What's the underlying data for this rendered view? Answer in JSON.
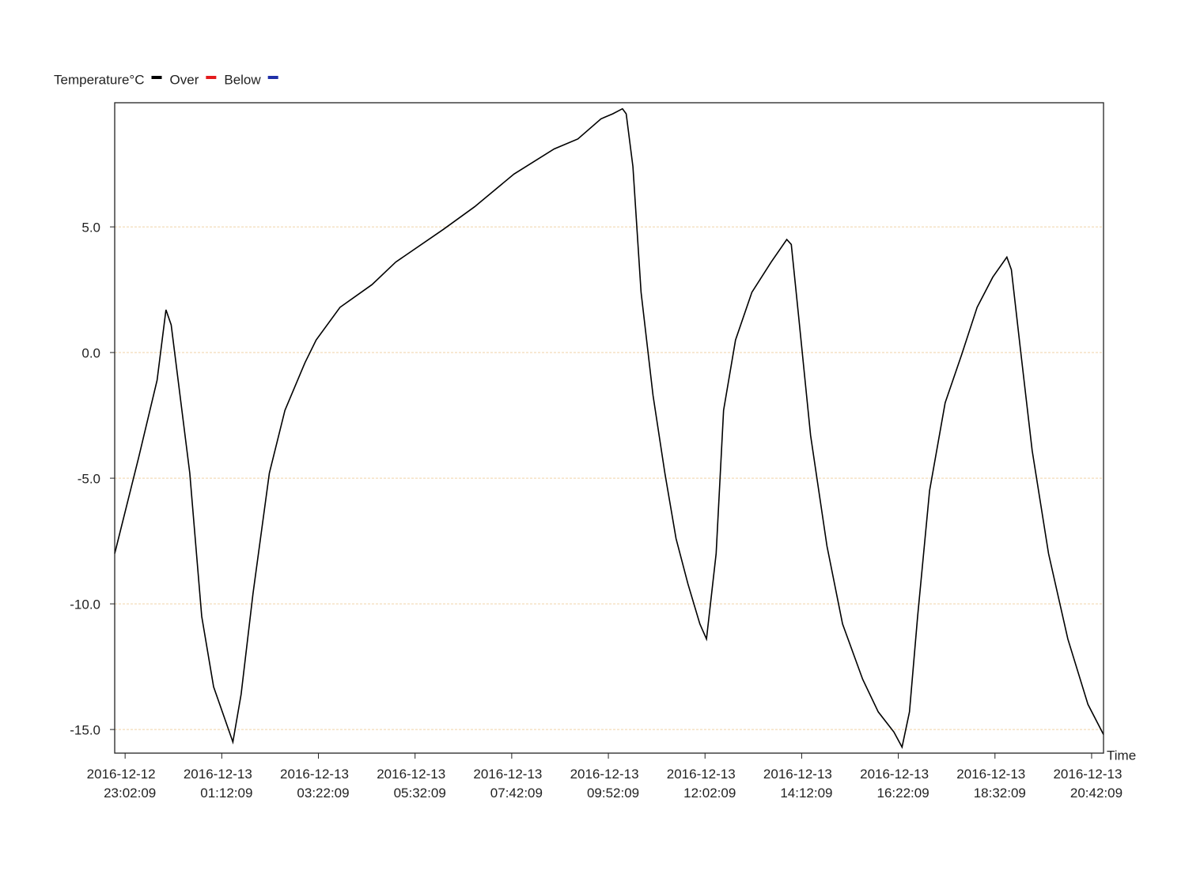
{
  "chart_data": {
    "type": "line",
    "series": [
      {
        "name": "Temperature°C",
        "color": "#000000",
        "values": [
          -8.0,
          -4.2,
          -1.1,
          1.7,
          1.1,
          -4.8,
          -10.5,
          -13.3,
          -15.5,
          -13.6,
          -9.6,
          -4.8,
          -2.3,
          -0.4,
          0.5,
          1.8,
          2.7,
          3.6,
          4.9,
          5.8,
          7.1,
          8.1,
          8.5,
          9.3,
          9.5,
          9.7,
          9.5,
          7.4,
          2.4,
          -1.7,
          -4.8,
          -7.4,
          -9.2,
          -10.8,
          -11.4,
          -8.0,
          -2.3,
          0.5,
          2.4,
          3.6,
          4.5,
          4.3,
          1.4,
          -3.3,
          -7.7,
          -10.8,
          -13.0,
          -14.3,
          -15.1,
          -15.7,
          -14.3,
          -10.5,
          -5.5,
          -2.0,
          -0.1,
          1.8,
          3.0,
          3.8,
          3.3,
          0.2,
          -3.9,
          -8.0,
          -11.4,
          -14.0,
          -15.2
        ]
      }
    ],
    "legend_extra": [
      {
        "name": "Over",
        "color": "#e41a1c"
      },
      {
        "name": "Below",
        "color": "#1f2fa8"
      }
    ],
    "x": [
      "2016-12-12 22:48:09",
      "2016-12-12 23:20:09",
      "2016-12-12 23:45:09",
      "2016-12-12 23:57:09",
      "2016-12-13 00:04:09",
      "2016-12-13 00:29:09",
      "2016-12-13 00:45:09",
      "2016-12-13 01:01:09",
      "2016-12-13 01:27:09",
      "2016-12-13 01:38:09",
      "2016-12-13 01:54:09",
      "2016-12-13 02:16:09",
      "2016-12-13 02:37:09",
      "2016-12-13 03:04:09",
      "2016-12-13 03:19:09",
      "2016-12-13 03:51:09",
      "2016-12-13 04:34:09",
      "2016-12-13 05:06:09",
      "2016-12-13 06:10:09",
      "2016-12-13 06:52:09",
      "2016-12-13 07:45:09",
      "2016-12-13 08:39:09",
      "2016-12-13 09:11:09",
      "2016-12-13 09:42:09",
      "2016-12-13 09:58:09",
      "2016-12-13 10:11:09",
      "2016-12-13 10:16:09",
      "2016-12-13 10:25:09",
      "2016-12-13 10:36:09",
      "2016-12-13 10:52:09",
      "2016-12-13 11:08:09",
      "2016-12-13 11:23:09",
      "2016-12-13 11:39:09",
      "2016-12-13 11:55:09",
      "2016-12-13 12:04:09",
      "2016-12-13 12:17:09",
      "2016-12-13 12:27:09",
      "2016-12-13 12:43:09",
      "2016-12-13 13:05:09",
      "2016-12-13 13:31:09",
      "2016-12-13 13:52:09",
      "2016-12-13 13:58:09",
      "2016-12-13 14:08:09",
      "2016-12-13 14:24:09",
      "2016-12-13 14:46:09",
      "2016-12-13 15:07:09",
      "2016-12-13 15:34:09",
      "2016-12-13 15:55:09",
      "2016-12-13 16:16:09",
      "2016-12-13 16:27:09",
      "2016-12-13 16:37:09",
      "2016-12-13 16:48:09",
      "2016-12-13 17:04:09",
      "2016-12-13 17:25:09",
      "2016-12-13 17:47:09",
      "2016-12-13 18:08:09",
      "2016-12-13 18:29:09",
      "2016-12-13 18:48:09",
      "2016-12-13 18:54:09",
      "2016-12-13 19:06:09",
      "2016-12-13 19:22:09",
      "2016-12-13 19:44:09",
      "2016-12-13 20:10:09",
      "2016-12-13 20:37:09",
      "2016-12-13 20:58:09"
    ],
    "xlim": [
      "2016-12-12 22:48:09",
      "2016-12-13 20:58:09"
    ],
    "xticks": [
      "2016-12-12 23:02:09",
      "2016-12-13 01:12:09",
      "2016-12-13 03:22:09",
      "2016-12-13 05:32:09",
      "2016-12-13 07:42:09",
      "2016-12-13 09:52:09",
      "2016-12-13 12:02:09",
      "2016-12-13 14:12:09",
      "2016-12-13 16:22:09",
      "2016-12-13 18:32:09",
      "2016-12-13 20:42:09"
    ],
    "x_label": "Time",
    "ylim": [
      -15.94,
      9.94
    ],
    "yticks": [
      {
        "value": -15,
        "label": "-15.0"
      },
      {
        "value": -10,
        "label": "-10.0"
      },
      {
        "value": -5,
        "label": "-5.0"
      },
      {
        "value": 0,
        "label": "0.0"
      },
      {
        "value": 5,
        "label": "5.0"
      }
    ],
    "grid": true,
    "grid_color": "#f3dcb8"
  }
}
